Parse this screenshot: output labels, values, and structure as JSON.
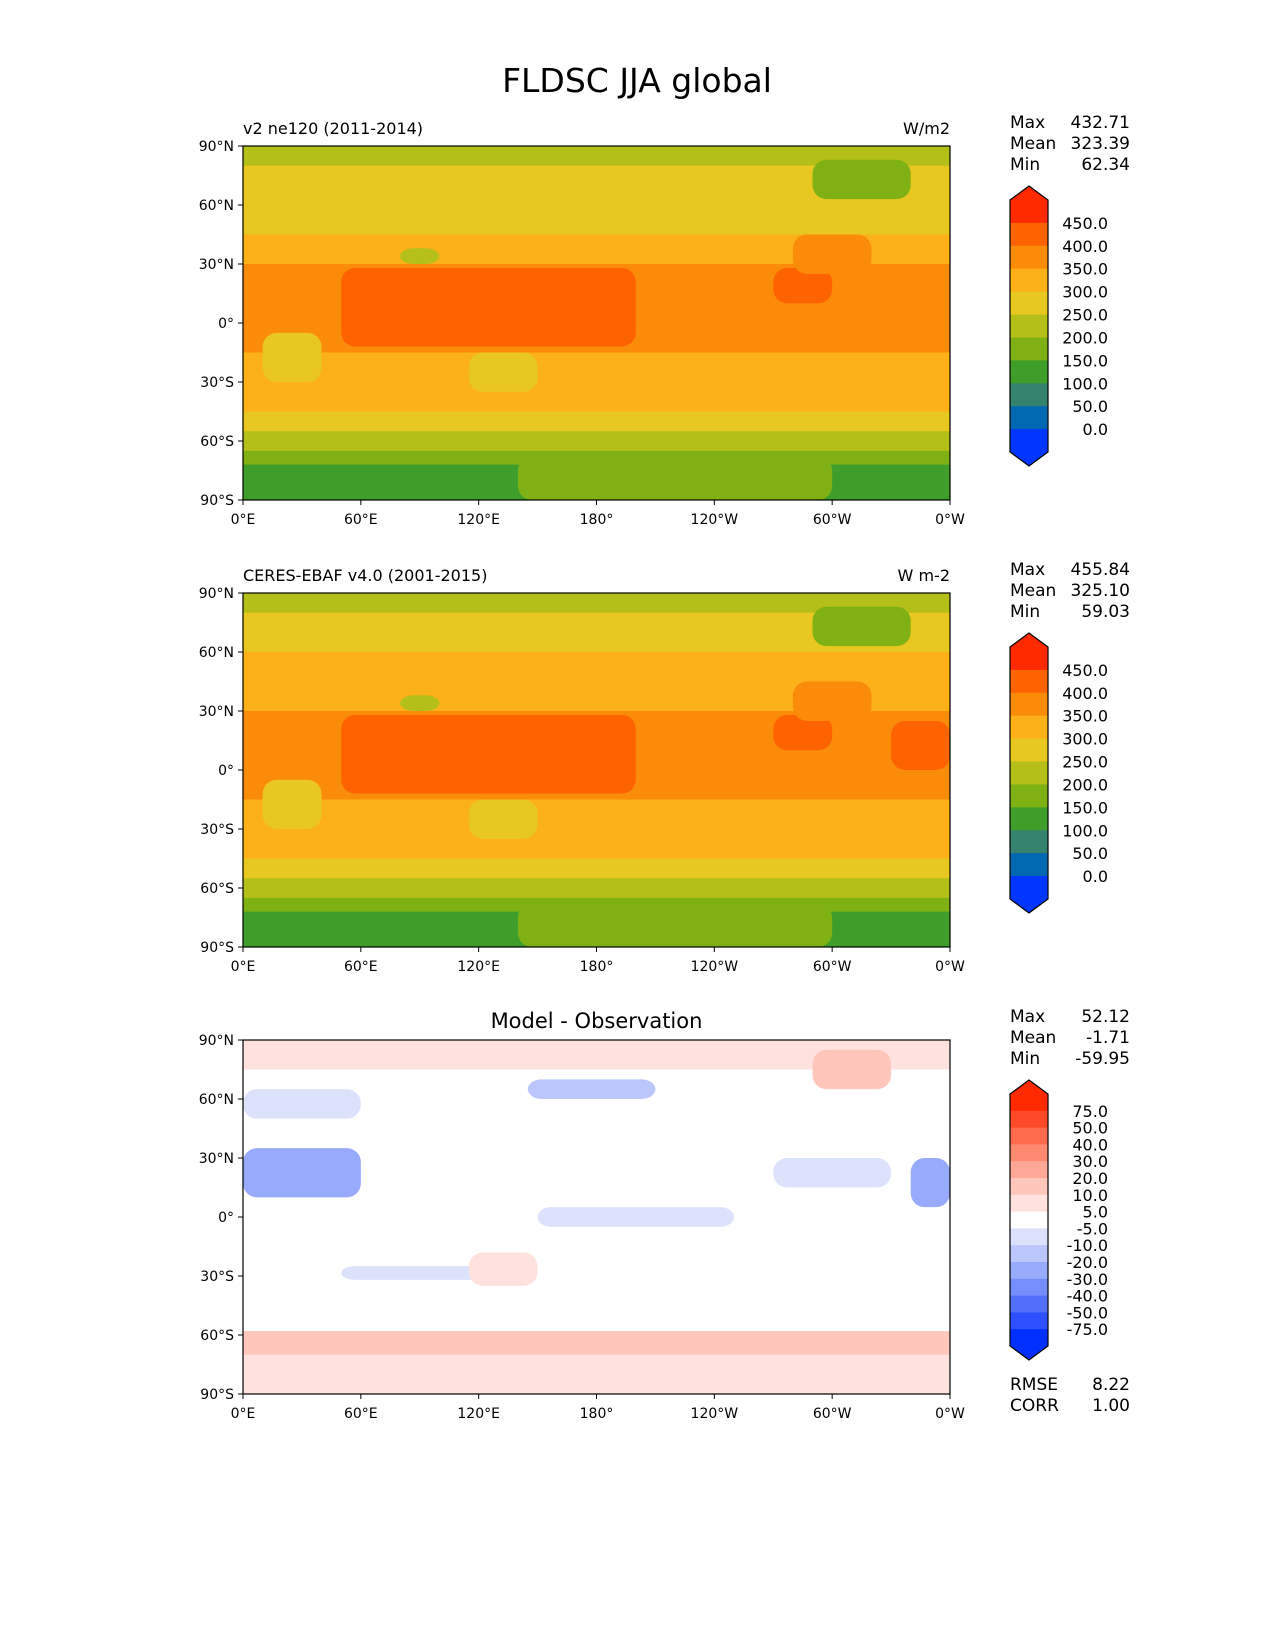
{
  "chart_data": {
    "type": "heatmap",
    "title": "FLDSC JJA global",
    "x_ticks": [
      "0°E",
      "60°E",
      "120°E",
      "180°",
      "120°W",
      "60°W",
      "0°W"
    ],
    "y_ticks": [
      "90°N",
      "60°N",
      "30°N",
      "0°",
      "30°S",
      "60°S",
      "90°S"
    ],
    "xlim": [
      0,
      360
    ],
    "ylim": [
      -90,
      90
    ],
    "panels": [
      {
        "left_title": "v2 ne120 (2011-2014)",
        "right_title": "W/m2",
        "center_title": "",
        "stats": [
          {
            "label": "Max",
            "value": "432.71"
          },
          {
            "label": "Mean",
            "value": "323.39"
          },
          {
            "label": "Min",
            "value": "62.34"
          }
        ],
        "colorbar": "abs",
        "zonal": [
          [
            90,
            230
          ],
          [
            80,
            270
          ],
          [
            60,
            290
          ],
          [
            45,
            330
          ],
          [
            30,
            380
          ],
          [
            -15,
            340
          ],
          [
            -30,
            310
          ],
          [
            -45,
            270
          ],
          [
            -55,
            230
          ],
          [
            -65,
            180
          ],
          [
            -72,
            120
          ],
          [
            -90,
            120
          ]
        ],
        "regions": [
          {
            "lon": [
              50,
              200
            ],
            "lat": [
              28,
              -12
            ],
            "value": 410
          },
          {
            "lon": [
              270,
              300
            ],
            "lat": [
              28,
              10
            ],
            "value": 410
          },
          {
            "lon": [
              280,
              320
            ],
            "lat": [
              45,
              25
            ],
            "value": 370
          },
          {
            "lon": [
              340,
              360
            ],
            "lat": [
              25,
              0
            ],
            "value": 380
          },
          {
            "lon": [
              10,
              40
            ],
            "lat": [
              -5,
              -30
            ],
            "value": 280
          },
          {
            "lon": [
              115,
              150
            ],
            "lat": [
              -15,
              -35
            ],
            "value": 290
          },
          {
            "lon": [
              80,
              100
            ],
            "lat": [
              38,
              30
            ],
            "value": 230
          },
          {
            "lon": [
              290,
              340
            ],
            "lat": [
              83,
              63
            ],
            "value": 190
          },
          {
            "lon": [
              140,
              300
            ],
            "lat": [
              -68,
              -90
            ],
            "value": 170
          }
        ]
      },
      {
        "left_title": "CERES-EBAF v4.0 (2001-2015)",
        "right_title": "W m-2",
        "center_title": "",
        "stats": [
          {
            "label": "Max",
            "value": "455.84"
          },
          {
            "label": "Mean",
            "value": "325.10"
          },
          {
            "label": "Min",
            "value": "59.03"
          }
        ],
        "colorbar": "abs",
        "zonal": [
          [
            90,
            230
          ],
          [
            80,
            270
          ],
          [
            60,
            300
          ],
          [
            45,
            330
          ],
          [
            30,
            385
          ],
          [
            -15,
            340
          ],
          [
            -30,
            310
          ],
          [
            -45,
            270
          ],
          [
            -55,
            230
          ],
          [
            -65,
            180
          ],
          [
            -72,
            120
          ],
          [
            -90,
            120
          ]
        ],
        "regions": [
          {
            "lon": [
              50,
              200
            ],
            "lat": [
              28,
              -12
            ],
            "value": 410
          },
          {
            "lon": [
              270,
              300
            ],
            "lat": [
              28,
              10
            ],
            "value": 410
          },
          {
            "lon": [
              280,
              320
            ],
            "lat": [
              45,
              25
            ],
            "value": 370
          },
          {
            "lon": [
              330,
              360
            ],
            "lat": [
              25,
              0
            ],
            "value": 410
          },
          {
            "lon": [
              10,
              40
            ],
            "lat": [
              -5,
              -30
            ],
            "value": 280
          },
          {
            "lon": [
              115,
              150
            ],
            "lat": [
              -15,
              -35
            ],
            "value": 290
          },
          {
            "lon": [
              80,
              100
            ],
            "lat": [
              38,
              30
            ],
            "value": 230
          },
          {
            "lon": [
              290,
              340
            ],
            "lat": [
              83,
              63
            ],
            "value": 190
          },
          {
            "lon": [
              140,
              300
            ],
            "lat": [
              -68,
              -90
            ],
            "value": 170
          }
        ]
      },
      {
        "left_title": "",
        "right_title": "",
        "center_title": "Model - Observation",
        "stats": [
          {
            "label": "Max",
            "value": "52.12"
          },
          {
            "label": "Mean",
            "value": "-1.71"
          },
          {
            "label": "Min",
            "value": "-59.95"
          }
        ],
        "colorbar": "diff",
        "extra_stats": [
          {
            "label": "RMSE",
            "value": "8.22"
          },
          {
            "label": "CORR",
            "value": "1.00"
          }
        ],
        "zonal": [
          [
            90,
            8
          ],
          [
            75,
            0
          ],
          [
            -55,
            0
          ],
          [
            -58,
            12
          ],
          [
            -70,
            8
          ],
          [
            -90,
            8
          ]
        ],
        "regions": [
          {
            "lon": [
              0,
              60
            ],
            "lat": [
              35,
              10
            ],
            "value": -25
          },
          {
            "lon": [
              340,
              360
            ],
            "lat": [
              30,
              5
            ],
            "value": -25
          },
          {
            "lon": [
              150,
              250
            ],
            "lat": [
              5,
              -5
            ],
            "value": -7
          },
          {
            "lon": [
              270,
              330
            ],
            "lat": [
              30,
              15
            ],
            "value": -7
          },
          {
            "lon": [
              50,
              140
            ],
            "lat": [
              -25,
              -32
            ],
            "value": -7
          },
          {
            "lon": [
              115,
              150
            ],
            "lat": [
              -18,
              -35
            ],
            "value": 7
          },
          {
            "lon": [
              145,
              210
            ],
            "lat": [
              70,
              60
            ],
            "value": -12
          },
          {
            "lon": [
              290,
              330
            ],
            "lat": [
              85,
              65
            ],
            "value": 12
          },
          {
            "lon": [
              0,
              60
            ],
            "lat": [
              65,
              50
            ],
            "value": -7
          }
        ]
      }
    ],
    "colorbars": {
      "abs": {
        "levels": [
          "450.0",
          "400.0",
          "350.0",
          "300.0",
          "250.0",
          "200.0",
          "150.0",
          "100.0",
          "50.0",
          "0.0"
        ],
        "bounds": [
          450,
          400,
          350,
          300,
          250,
          200,
          150,
          100,
          50,
          0
        ],
        "colors": [
          "#ff2a00",
          "#fd6400",
          "#fb8c0a",
          "#fbb117",
          "#e8c820",
          "#b5bf1a",
          "#7fb114",
          "#3f9e2a",
          "#35836e",
          "#0068b0",
          "#0036ff"
        ]
      },
      "diff": {
        "levels": [
          "75.0",
          "50.0",
          "40.0",
          "30.0",
          "20.0",
          "10.0",
          "5.0",
          "-5.0",
          "-10.0",
          "-20.0",
          "-30.0",
          "-40.0",
          "-50.0",
          "-75.0"
        ],
        "bounds": [
          75,
          50,
          40,
          30,
          20,
          10,
          5,
          -5,
          -10,
          -20,
          -30,
          -40,
          -50,
          -75
        ],
        "colors": [
          "#ff2a00",
          "#ff4a2a",
          "#ff6a4a",
          "#ff8a70",
          "#ffa898",
          "#ffc6bc",
          "#ffe2de",
          "#ffffff",
          "#dce2fc",
          "#bac6fc",
          "#97aafc",
          "#758efc",
          "#5270fc",
          "#2d50fc",
          "#0030ff"
        ]
      }
    }
  }
}
